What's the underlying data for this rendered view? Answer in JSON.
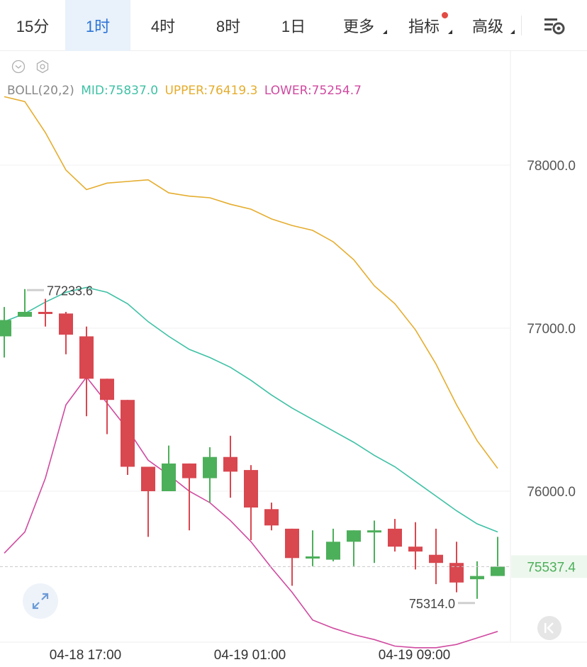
{
  "tabs": [
    {
      "label": "15分",
      "active": false,
      "dropdown": false,
      "dot": false
    },
    {
      "label": "1时",
      "active": true,
      "dropdown": false,
      "dot": false
    },
    {
      "label": "4时",
      "active": false,
      "dropdown": false,
      "dot": false
    },
    {
      "label": "8时",
      "active": false,
      "dropdown": false,
      "dot": false
    },
    {
      "label": "1日",
      "active": false,
      "dropdown": false,
      "dot": false
    },
    {
      "label": "更多",
      "active": false,
      "dropdown": true,
      "dot": false
    },
    {
      "label": "指标",
      "active": false,
      "dropdown": true,
      "dot": true
    },
    {
      "label": "高级",
      "active": false,
      "dropdown": true,
      "dot": false
    }
  ],
  "indicator": {
    "name": "BOLL(20,2)",
    "mid": "MID:75837.0",
    "upper": "UPPER:76419.3",
    "lower": "LOWER:75254.7"
  },
  "colors": {
    "up": "#4caf5a",
    "down": "#d9474f",
    "mid": "#3fc1a5",
    "upper": "#e5ad2e",
    "lower": "#d04aa0",
    "active_tab": "#2b74d6"
  },
  "chart_data": {
    "type": "candlestick",
    "ylim": [
      75000,
      78650
    ],
    "yticks": [
      78000,
      77000,
      76000
    ],
    "ytick_labels": [
      "78000.0",
      "77000.0",
      "76000.0"
    ],
    "x_labels": [
      {
        "index": 3.5,
        "label": "04-18 17:00"
      },
      {
        "index": 11.5,
        "label": "04-19 01:00"
      },
      {
        "index": 19.5,
        "label": "04-19 09:00"
      }
    ],
    "candles": [
      {
        "o": 76950,
        "h": 77130,
        "l": 76820,
        "c": 77050
      },
      {
        "o": 77070,
        "h": 77240,
        "l": 77070,
        "c": 77100
      },
      {
        "o": 77100,
        "h": 77180,
        "l": 77010,
        "c": 77090
      },
      {
        "o": 77090,
        "h": 77100,
        "l": 76840,
        "c": 76960
      },
      {
        "o": 76950,
        "h": 77010,
        "l": 76460,
        "c": 76690
      },
      {
        "o": 76690,
        "h": 76690,
        "l": 76350,
        "c": 76560
      },
      {
        "o": 76560,
        "h": 76560,
        "l": 76100,
        "c": 76150
      },
      {
        "o": 76150,
        "h": 76150,
        "l": 75720,
        "c": 76000
      },
      {
        "o": 76000,
        "h": 76280,
        "l": 76000,
        "c": 76170
      },
      {
        "o": 76170,
        "h": 76170,
        "l": 75760,
        "c": 76080
      },
      {
        "o": 76080,
        "h": 76270,
        "l": 75930,
        "c": 76210
      },
      {
        "o": 76210,
        "h": 76340,
        "l": 75960,
        "c": 76120
      },
      {
        "o": 76130,
        "h": 76160,
        "l": 75700,
        "c": 75900
      },
      {
        "o": 75890,
        "h": 75930,
        "l": 75760,
        "c": 75790
      },
      {
        "o": 75770,
        "h": 75770,
        "l": 75420,
        "c": 75590
      },
      {
        "o": 75590,
        "h": 75760,
        "l": 75540,
        "c": 75600
      },
      {
        "o": 75580,
        "h": 75770,
        "l": 75570,
        "c": 75690
      },
      {
        "o": 75690,
        "h": 75760,
        "l": 75540,
        "c": 75760
      },
      {
        "o": 75760,
        "h": 75820,
        "l": 75560,
        "c": 75760
      },
      {
        "o": 75770,
        "h": 75830,
        "l": 75630,
        "c": 75660
      },
      {
        "o": 75660,
        "h": 75810,
        "l": 75520,
        "c": 75630
      },
      {
        "o": 75610,
        "h": 75770,
        "l": 75430,
        "c": 75560
      },
      {
        "o": 75560,
        "h": 75690,
        "l": 75380,
        "c": 75440
      },
      {
        "o": 75460,
        "h": 75570,
        "l": 75340,
        "c": 75480
      },
      {
        "o": 75480,
        "h": 75720,
        "l": 75480,
        "c": 75537.4
      }
    ],
    "boll_upper": [
      78420,
      78390,
      78200,
      77970,
      77850,
      77890,
      77900,
      77910,
      77830,
      77810,
      77800,
      77760,
      77730,
      77670,
      77630,
      77600,
      77530,
      77420,
      77260,
      77150,
      76990,
      76780,
      76530,
      76310,
      76140
    ],
    "boll_mid": [
      77040,
      77090,
      77160,
      77220,
      77250,
      77220,
      77150,
      77040,
      76950,
      76870,
      76820,
      76760,
      76680,
      76590,
      76510,
      76440,
      76370,
      76300,
      76220,
      76150,
      76060,
      75970,
      75880,
      75800,
      75750
    ],
    "boll_lower": [
      75620,
      75750,
      76080,
      76530,
      76700,
      76540,
      76380,
      76190,
      76100,
      76000,
      75930,
      75820,
      75690,
      75530,
      75380,
      75210,
      75160,
      75120,
      75090,
      75050,
      75040,
      75040,
      75060,
      75100,
      75140
    ],
    "high_label": "77233.6",
    "low_label": "75314.0",
    "last_price": "75537.4"
  }
}
